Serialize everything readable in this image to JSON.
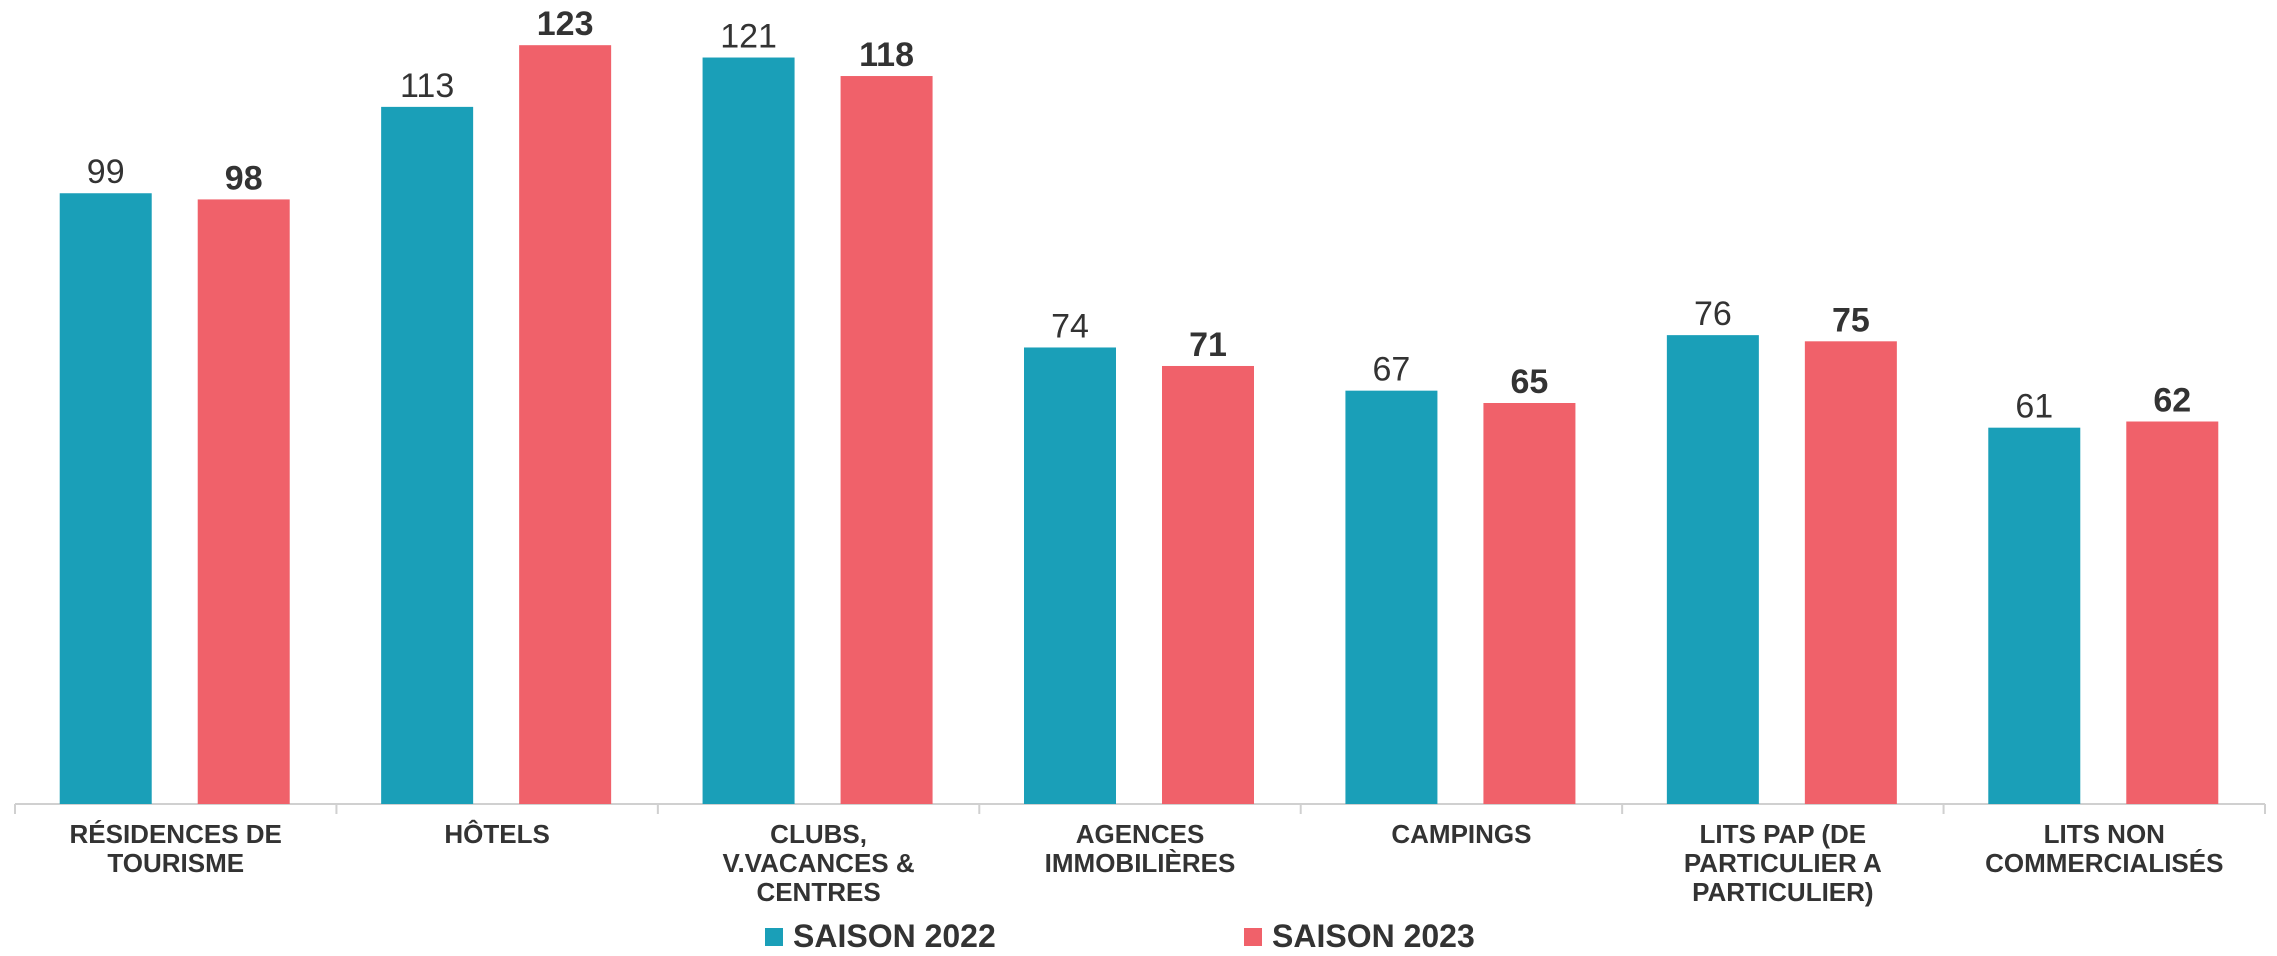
{
  "chart_data": {
    "type": "bar",
    "categories": [
      "RÉSIDENCES DE TOURISME",
      "HÔTELS",
      "CLUBS, V.VACANCES & CENTRES",
      "AGENCES IMMOBILIÈRES",
      "CAMPINGS",
      "LITS PAP (DE PARTICULIER A PARTICULIER)",
      "LITS NON COMMERCIALISÉS"
    ],
    "series": [
      {
        "name": "SAISON 2022",
        "color": "#1a9fb8",
        "values": [
          99,
          113,
          121,
          74,
          67,
          76,
          61
        ]
      },
      {
        "name": "SAISON 2023",
        "color": "#f0616a",
        "values": [
          98,
          123,
          118,
          71,
          65,
          75,
          62
        ]
      }
    ],
    "ylim": [
      0,
      130
    ]
  }
}
